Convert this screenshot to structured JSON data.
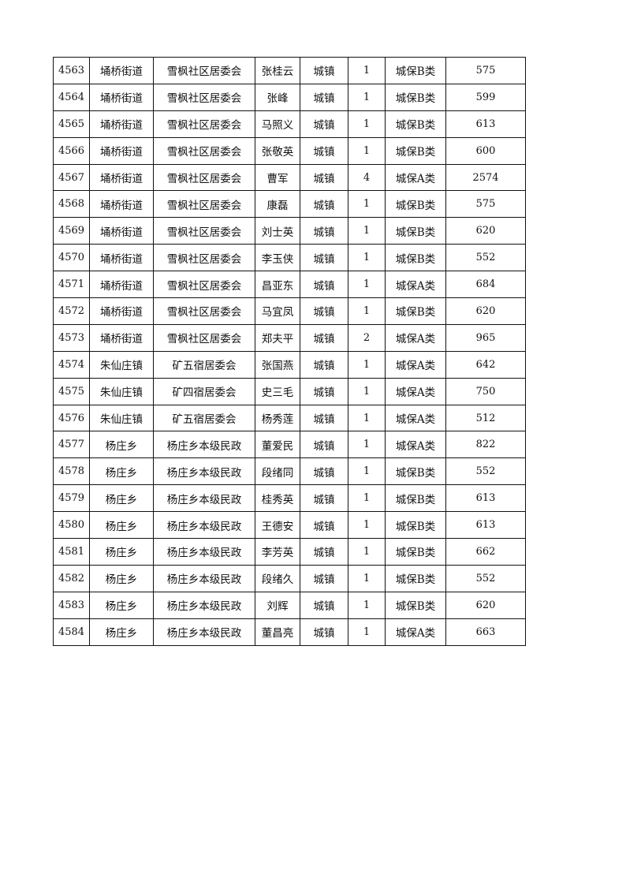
{
  "rows": [
    [
      "4563",
      "埇桥街道",
      "雪枫社区居委会",
      "张桂云",
      "城镇",
      "1",
      "城保B类",
      "575"
    ],
    [
      "4564",
      "埇桥街道",
      "雪枫社区居委会",
      "张峰",
      "城镇",
      "1",
      "城保B类",
      "599"
    ],
    [
      "4565",
      "埇桥街道",
      "雪枫社区居委会",
      "马照义",
      "城镇",
      "1",
      "城保B类",
      "613"
    ],
    [
      "4566",
      "埇桥街道",
      "雪枫社区居委会",
      "张敬英",
      "城镇",
      "1",
      "城保B类",
      "600"
    ],
    [
      "4567",
      "埇桥街道",
      "雪枫社区居委会",
      "曹军",
      "城镇",
      "4",
      "城保A类",
      "2574"
    ],
    [
      "4568",
      "埇桥街道",
      "雪枫社区居委会",
      "康磊",
      "城镇",
      "1",
      "城保B类",
      "575"
    ],
    [
      "4569",
      "埇桥街道",
      "雪枫社区居委会",
      "刘士英",
      "城镇",
      "1",
      "城保B类",
      "620"
    ],
    [
      "4570",
      "埇桥街道",
      "雪枫社区居委会",
      "李玉侠",
      "城镇",
      "1",
      "城保B类",
      "552"
    ],
    [
      "4571",
      "埇桥街道",
      "雪枫社区居委会",
      "昌亚东",
      "城镇",
      "1",
      "城保A类",
      "684"
    ],
    [
      "4572",
      "埇桥街道",
      "雪枫社区居委会",
      "马宜凤",
      "城镇",
      "1",
      "城保B类",
      "620"
    ],
    [
      "4573",
      "埇桥街道",
      "雪枫社区居委会",
      "郑夫平",
      "城镇",
      "2",
      "城保A类",
      "965"
    ],
    [
      "4574",
      "朱仙庄镇",
      "矿五宿居委会",
      "张国燕",
      "城镇",
      "1",
      "城保A类",
      "642"
    ],
    [
      "4575",
      "朱仙庄镇",
      "矿四宿居委会",
      "史三毛",
      "城镇",
      "1",
      "城保A类",
      "750"
    ],
    [
      "4576",
      "朱仙庄镇",
      "矿五宿居委会",
      "杨秀莲",
      "城镇",
      "1",
      "城保A类",
      "512"
    ],
    [
      "4577",
      "杨庄乡",
      "杨庄乡本级民政",
      "董爱民",
      "城镇",
      "1",
      "城保A类",
      "822"
    ],
    [
      "4578",
      "杨庄乡",
      "杨庄乡本级民政",
      "段绪同",
      "城镇",
      "1",
      "城保B类",
      "552"
    ],
    [
      "4579",
      "杨庄乡",
      "杨庄乡本级民政",
      "桂秀英",
      "城镇",
      "1",
      "城保B类",
      "613"
    ],
    [
      "4580",
      "杨庄乡",
      "杨庄乡本级民政",
      "王德安",
      "城镇",
      "1",
      "城保B类",
      "613"
    ],
    [
      "4581",
      "杨庄乡",
      "杨庄乡本级民政",
      "李芳英",
      "城镇",
      "1",
      "城保B类",
      "662"
    ],
    [
      "4582",
      "杨庄乡",
      "杨庄乡本级民政",
      "段绪久",
      "城镇",
      "1",
      "城保B类",
      "552"
    ],
    [
      "4583",
      "杨庄乡",
      "杨庄乡本级民政",
      "刘辉",
      "城镇",
      "1",
      "城保B类",
      "620"
    ],
    [
      "4584",
      "杨庄乡",
      "杨庄乡本级民政",
      "董昌亮",
      "城镇",
      "1",
      "城保A类",
      "663"
    ]
  ]
}
